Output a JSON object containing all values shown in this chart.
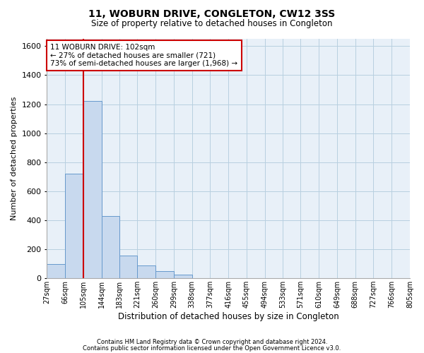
{
  "title": "11, WOBURN DRIVE, CONGLETON, CW12 3SS",
  "subtitle": "Size of property relative to detached houses in Congleton",
  "xlabel": "Distribution of detached houses by size in Congleton",
  "ylabel": "Number of detached properties",
  "footnote1": "Contains HM Land Registry data © Crown copyright and database right 2024.",
  "footnote2": "Contains public sector information licensed under the Open Government Licence v3.0.",
  "bar_color": "#c8d9ee",
  "bar_edge_color": "#6699cc",
  "grid_color": "#b8cfe0",
  "bg_color": "#e8f0f8",
  "annotation_box_color": "#cc0000",
  "red_line_color": "#cc0000",
  "bins": [
    27,
    66,
    105,
    144,
    183,
    221,
    260,
    299,
    338,
    377,
    416,
    455,
    494,
    533,
    571,
    610,
    649,
    688,
    727,
    766,
    805
  ],
  "bin_labels": [
    "27sqm",
    "66sqm",
    "105sqm",
    "144sqm",
    "183sqm",
    "221sqm",
    "260sqm",
    "299sqm",
    "338sqm",
    "377sqm",
    "416sqm",
    "455sqm",
    "494sqm",
    "533sqm",
    "571sqm",
    "610sqm",
    "649sqm",
    "688sqm",
    "727sqm",
    "766sqm",
    "805sqm"
  ],
  "counts": [
    100,
    720,
    1220,
    430,
    155,
    90,
    50,
    25,
    0,
    0,
    0,
    0,
    0,
    0,
    0,
    0,
    0,
    0,
    0,
    0
  ],
  "ylim": [
    0,
    1650
  ],
  "yticks": [
    0,
    200,
    400,
    600,
    800,
    1000,
    1200,
    1400,
    1600
  ],
  "annotation_line1": "11 WOBURN DRIVE: 102sqm",
  "annotation_line2": "← 27% of detached houses are smaller (721)",
  "annotation_line3": "73% of semi-detached houses are larger (1,968) →",
  "red_line_x": 105
}
